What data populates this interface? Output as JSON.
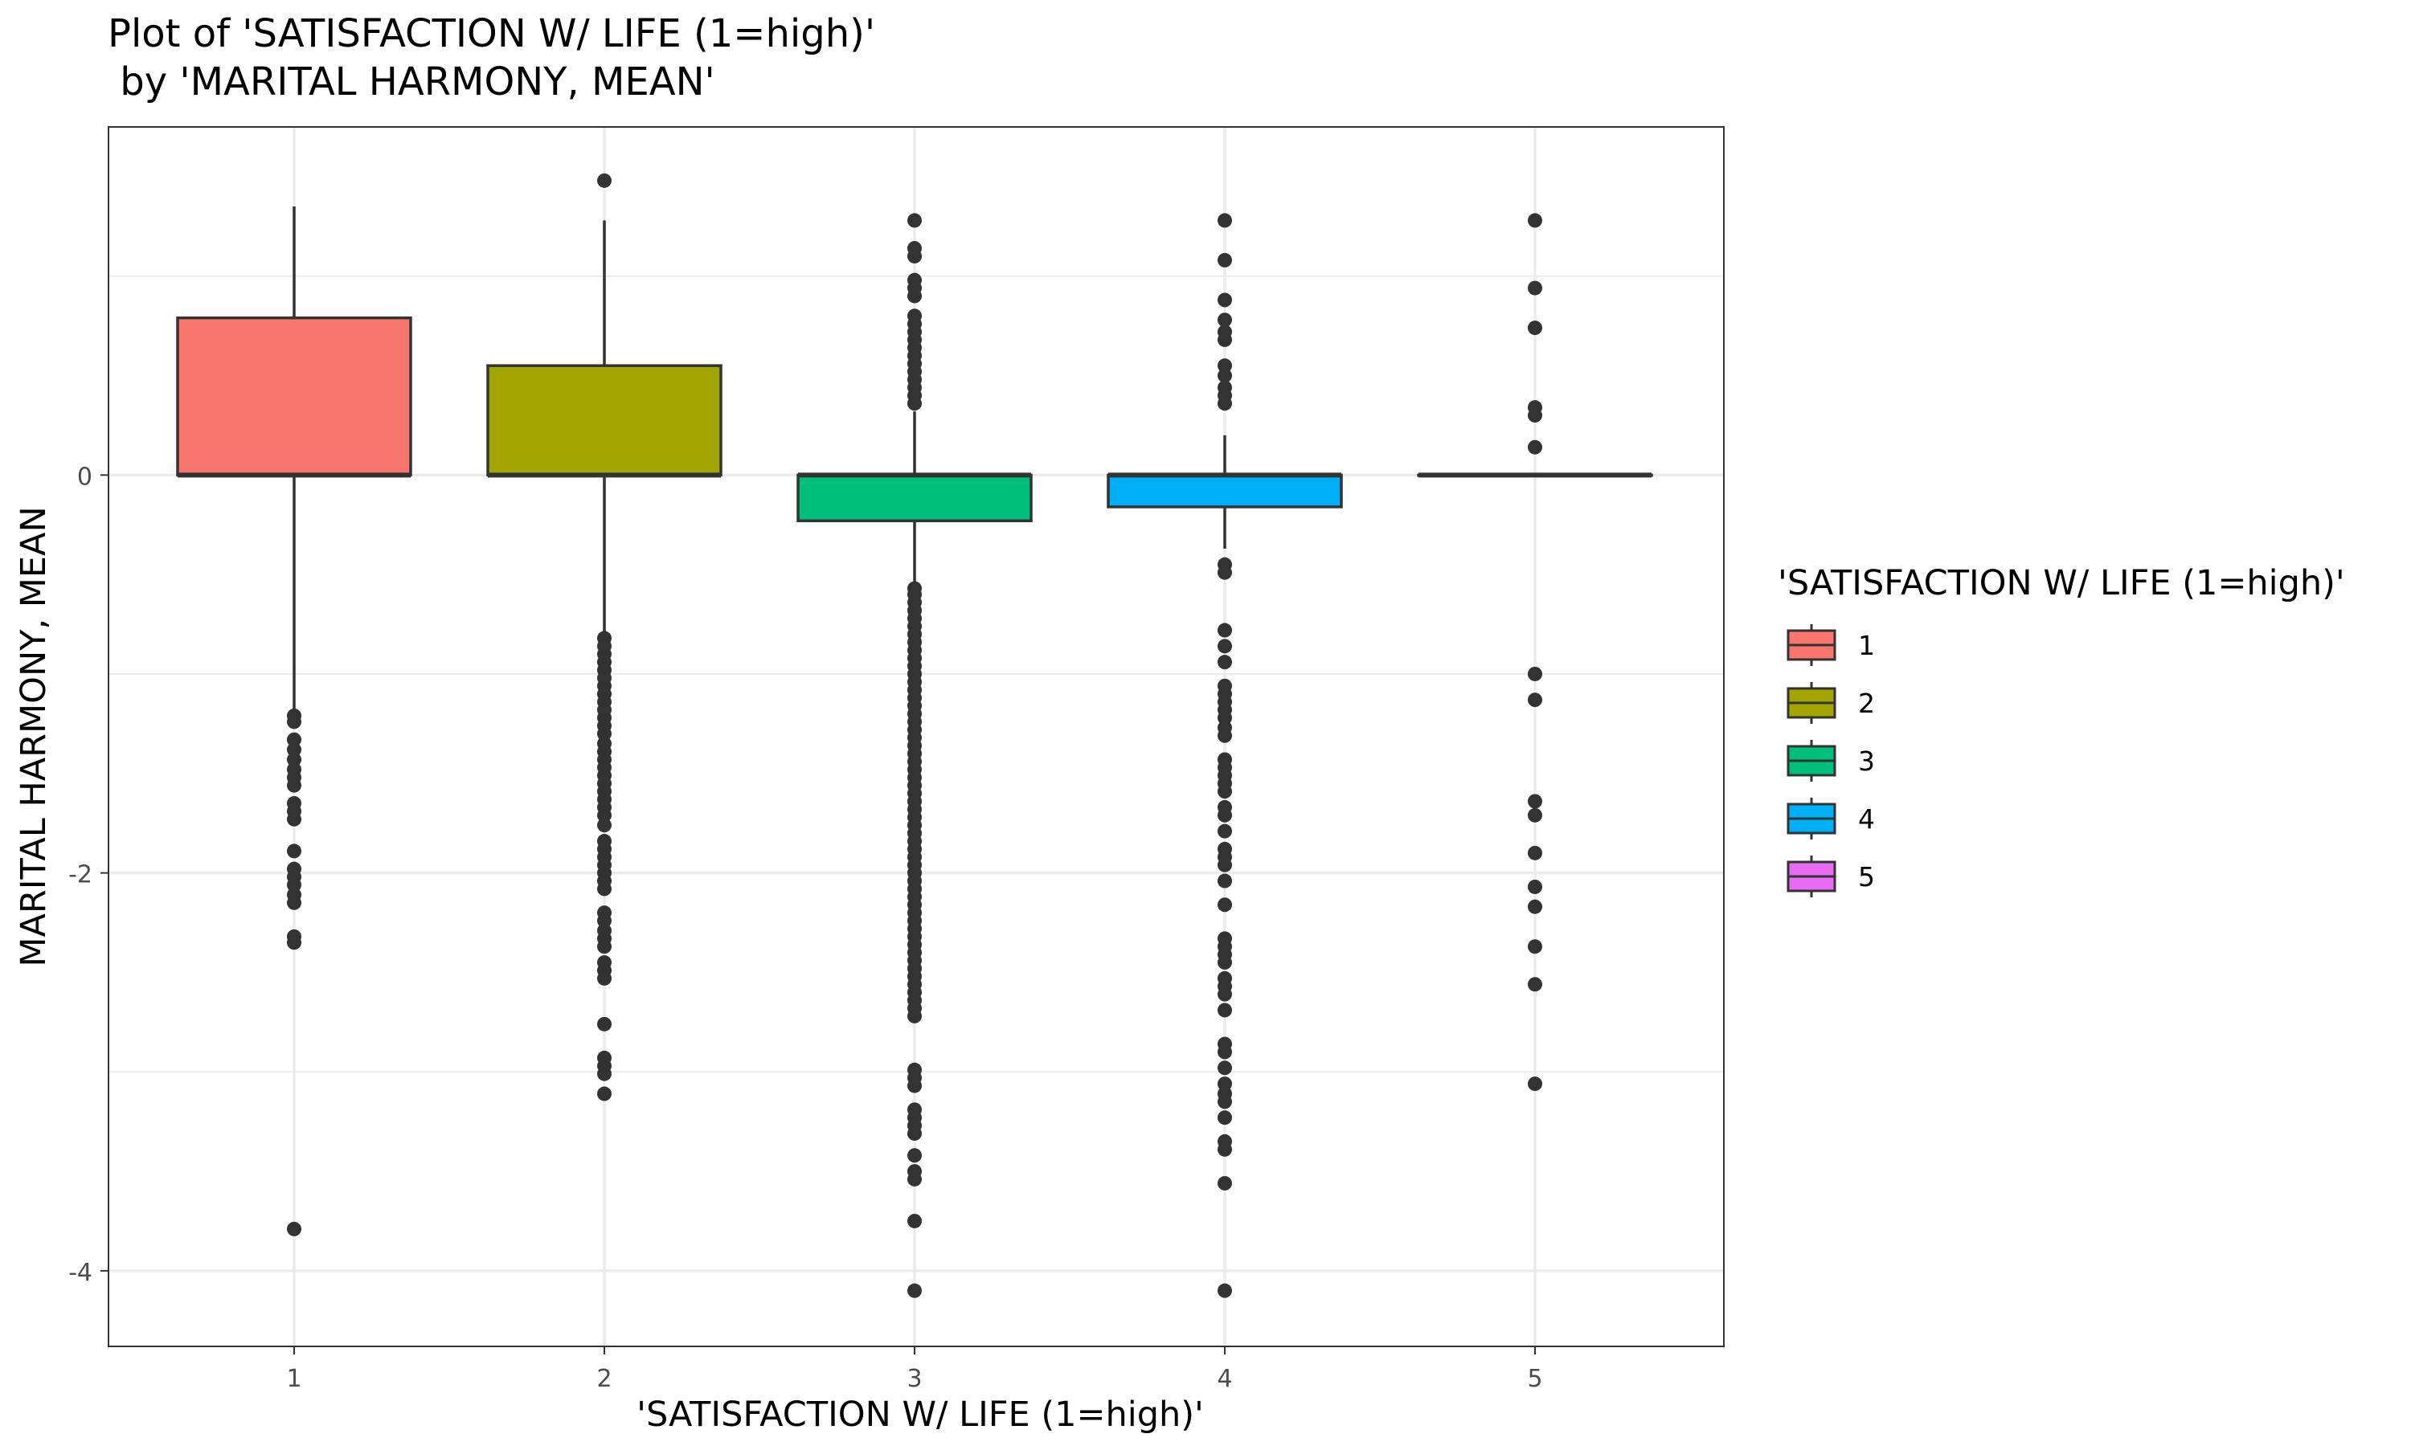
{
  "chart_data": {
    "type": "boxplot",
    "title_line1": "Plot of 'SATISFACTION W/ LIFE (1=high)'",
    "title_line2": " by 'MARITAL HARMONY, MEAN'",
    "xlabel": "'SATISFACTION W/ LIFE (1=high)'",
    "ylabel": "MARITAL HARMONY, MEAN",
    "legend_title": "'SATISFACTION W/ LIFE (1=high)'",
    "legend_position": "right",
    "grid": true,
    "ylim": [
      -4.38,
      1.75
    ],
    "yticks": [
      -4,
      -2,
      0
    ],
    "categories": [
      "1",
      "2",
      "3",
      "4",
      "5"
    ],
    "colors": [
      "#F8766D",
      "#A3A500",
      "#00BF7D",
      "#00B0F6",
      "#E76BF3"
    ],
    "boxes": [
      {
        "category": "1",
        "q1": 0.0,
        "median": 0.0,
        "q3": 0.79,
        "whisker_low": -1.2,
        "whisker_high": 1.35,
        "outliers": [
          -1.21,
          -1.24,
          -1.33,
          -1.38,
          -1.43,
          -1.48,
          -1.52,
          -1.56,
          -1.65,
          -1.69,
          -1.73,
          -1.89,
          -1.98,
          -2.02,
          -2.06,
          -2.11,
          -2.15,
          -2.32,
          -2.35,
          -3.79
        ]
      },
      {
        "category": "2",
        "q1": 0.0,
        "median": 0.0,
        "q3": 0.55,
        "whisker_low": -0.82,
        "whisker_high": 1.28,
        "outliers": [
          1.48,
          -0.82,
          -0.86,
          -0.9,
          -0.94,
          -0.98,
          -1.02,
          -1.06,
          -1.1,
          -1.14,
          -1.18,
          -1.22,
          -1.26,
          -1.3,
          -1.35,
          -1.39,
          -1.43,
          -1.47,
          -1.51,
          -1.55,
          -1.59,
          -1.63,
          -1.67,
          -1.71,
          -1.76,
          -1.84,
          -1.88,
          -1.92,
          -1.96,
          -2.0,
          -2.04,
          -2.08,
          -2.2,
          -2.24,
          -2.29,
          -2.33,
          -2.37,
          -2.45,
          -2.49,
          -2.53,
          -2.76,
          -2.93,
          -2.97,
          -3.01,
          -3.11
        ]
      },
      {
        "category": "3",
        "q1": -0.23,
        "median": 0.0,
        "q3": 0.0,
        "whisker_low": -0.55,
        "whisker_high": 0.32,
        "outliers": [
          1.28,
          1.14,
          1.1,
          0.98,
          0.94,
          0.9,
          0.8,
          0.76,
          0.72,
          0.68,
          0.64,
          0.6,
          0.56,
          0.52,
          0.48,
          0.44,
          0.4,
          0.36,
          -0.57,
          -0.6,
          -0.64,
          -0.68,
          -0.72,
          -0.76,
          -0.8,
          -0.84,
          -0.88,
          -0.92,
          -0.96,
          -1.0,
          -1.04,
          -1.08,
          -1.12,
          -1.16,
          -1.2,
          -1.24,
          -1.28,
          -1.32,
          -1.36,
          -1.4,
          -1.44,
          -1.48,
          -1.52,
          -1.56,
          -1.6,
          -1.64,
          -1.68,
          -1.72,
          -1.76,
          -1.8,
          -1.84,
          -1.88,
          -1.92,
          -1.96,
          -2.0,
          -2.04,
          -2.08,
          -2.12,
          -2.16,
          -2.2,
          -2.24,
          -2.28,
          -2.32,
          -2.36,
          -2.4,
          -2.44,
          -2.48,
          -2.52,
          -2.56,
          -2.6,
          -2.64,
          -2.68,
          -2.72,
          -2.99,
          -3.03,
          -3.07,
          -3.19,
          -3.23,
          -3.27,
          -3.31,
          -3.42,
          -3.5,
          -3.54,
          -3.75,
          -4.1
        ]
      },
      {
        "category": "4",
        "q1": -0.16,
        "median": 0.0,
        "q3": 0.0,
        "whisker_low": -0.37,
        "whisker_high": 0.2,
        "outliers": [
          1.28,
          1.08,
          0.88,
          0.78,
          0.72,
          0.68,
          0.55,
          0.5,
          0.44,
          0.4,
          0.36,
          -0.45,
          -0.49,
          -0.78,
          -0.86,
          -0.94,
          -1.06,
          -1.1,
          -1.14,
          -1.18,
          -1.22,
          -1.27,
          -1.31,
          -1.43,
          -1.47,
          -1.51,
          -1.55,
          -1.59,
          -1.67,
          -1.71,
          -1.79,
          -1.88,
          -1.92,
          -1.96,
          -2.04,
          -2.16,
          -2.33,
          -2.37,
          -2.41,
          -2.45,
          -2.53,
          -2.57,
          -2.61,
          -2.69,
          -2.86,
          -2.9,
          -2.98,
          -3.06,
          -3.11,
          -3.15,
          -3.23,
          -3.35,
          -3.39,
          -3.56,
          -4.1
        ]
      },
      {
        "category": "5",
        "q1": 0.0,
        "median": 0.0,
        "q3": 0.0,
        "whisker_low": 0.0,
        "whisker_high": 0.0,
        "outliers": [
          1.28,
          0.94,
          0.74,
          0.34,
          0.3,
          0.14,
          -1.0,
          -1.13,
          -1.64,
          -1.71,
          -1.9,
          -2.07,
          -2.17,
          -2.37,
          -2.56,
          -3.06
        ]
      }
    ]
  }
}
